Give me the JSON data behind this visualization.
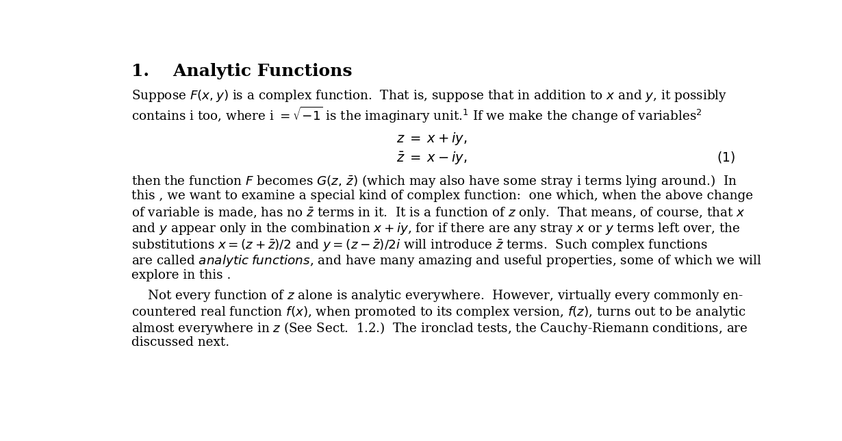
{
  "background_color": "#ffffff",
  "figsize": [
    12.3,
    6.44
  ],
  "dpi": 100,
  "title_line": "1.    Analytic Functions",
  "para1_line1": "Suppose $F\\left(x,y\\right)$ is a complex function.  That is, suppose that in addition to $x$ and $y$, it possibly",
  "para1_line2": "contains i too, where i $= \\sqrt{-1}$ is the imaginary unit.$^1$ If we make the change of variables$^2$",
  "eq1": "$z \\;=\\; x + iy,$",
  "eq2": "$\\bar{z} \\;=\\; x - iy,$",
  "eq_num": "$(1)$",
  "body_lines": [
    "then the function $F$ becomes $G\\left(z,\\,\\bar{z}\\right)$ (which may also have some stray i terms lying around.)  In",
    "this , we want to examine a special kind of complex function:  one which, when the above change",
    "of variable is made, has no $\\bar{z}$ terms in it.  It is a function of $z$ only.  That means, of course, that $x$",
    "and $y$ appear only in the combination $x+iy$, for if there are any stray $x$ or $y$ terms left over, the",
    "substitutions $x = \\left(z+\\bar{z}\\right)/2$ and $y = \\left(z-\\bar{z}\\right)/2i$ will introduce $\\bar{z}$ terms.  Such complex functions",
    "are called $\\mathit{analytic\\;functions}$, and have many amazing and useful properties, some of which we will",
    "explore in this ."
  ],
  "last_para_lines": [
    "    Not every function of $z$ alone is analytic everywhere.  However, virtually every commonly en-",
    "countered real function $f\\left(x\\right)$, when promoted to its complex version, $f\\left(z\\right)$, turns out to be analytic",
    "almost everywhere in $z$ (See Sect.  1.2.)  The ironclad tests, the Cauchy-Riemann conditions, are",
    "discussed next."
  ]
}
